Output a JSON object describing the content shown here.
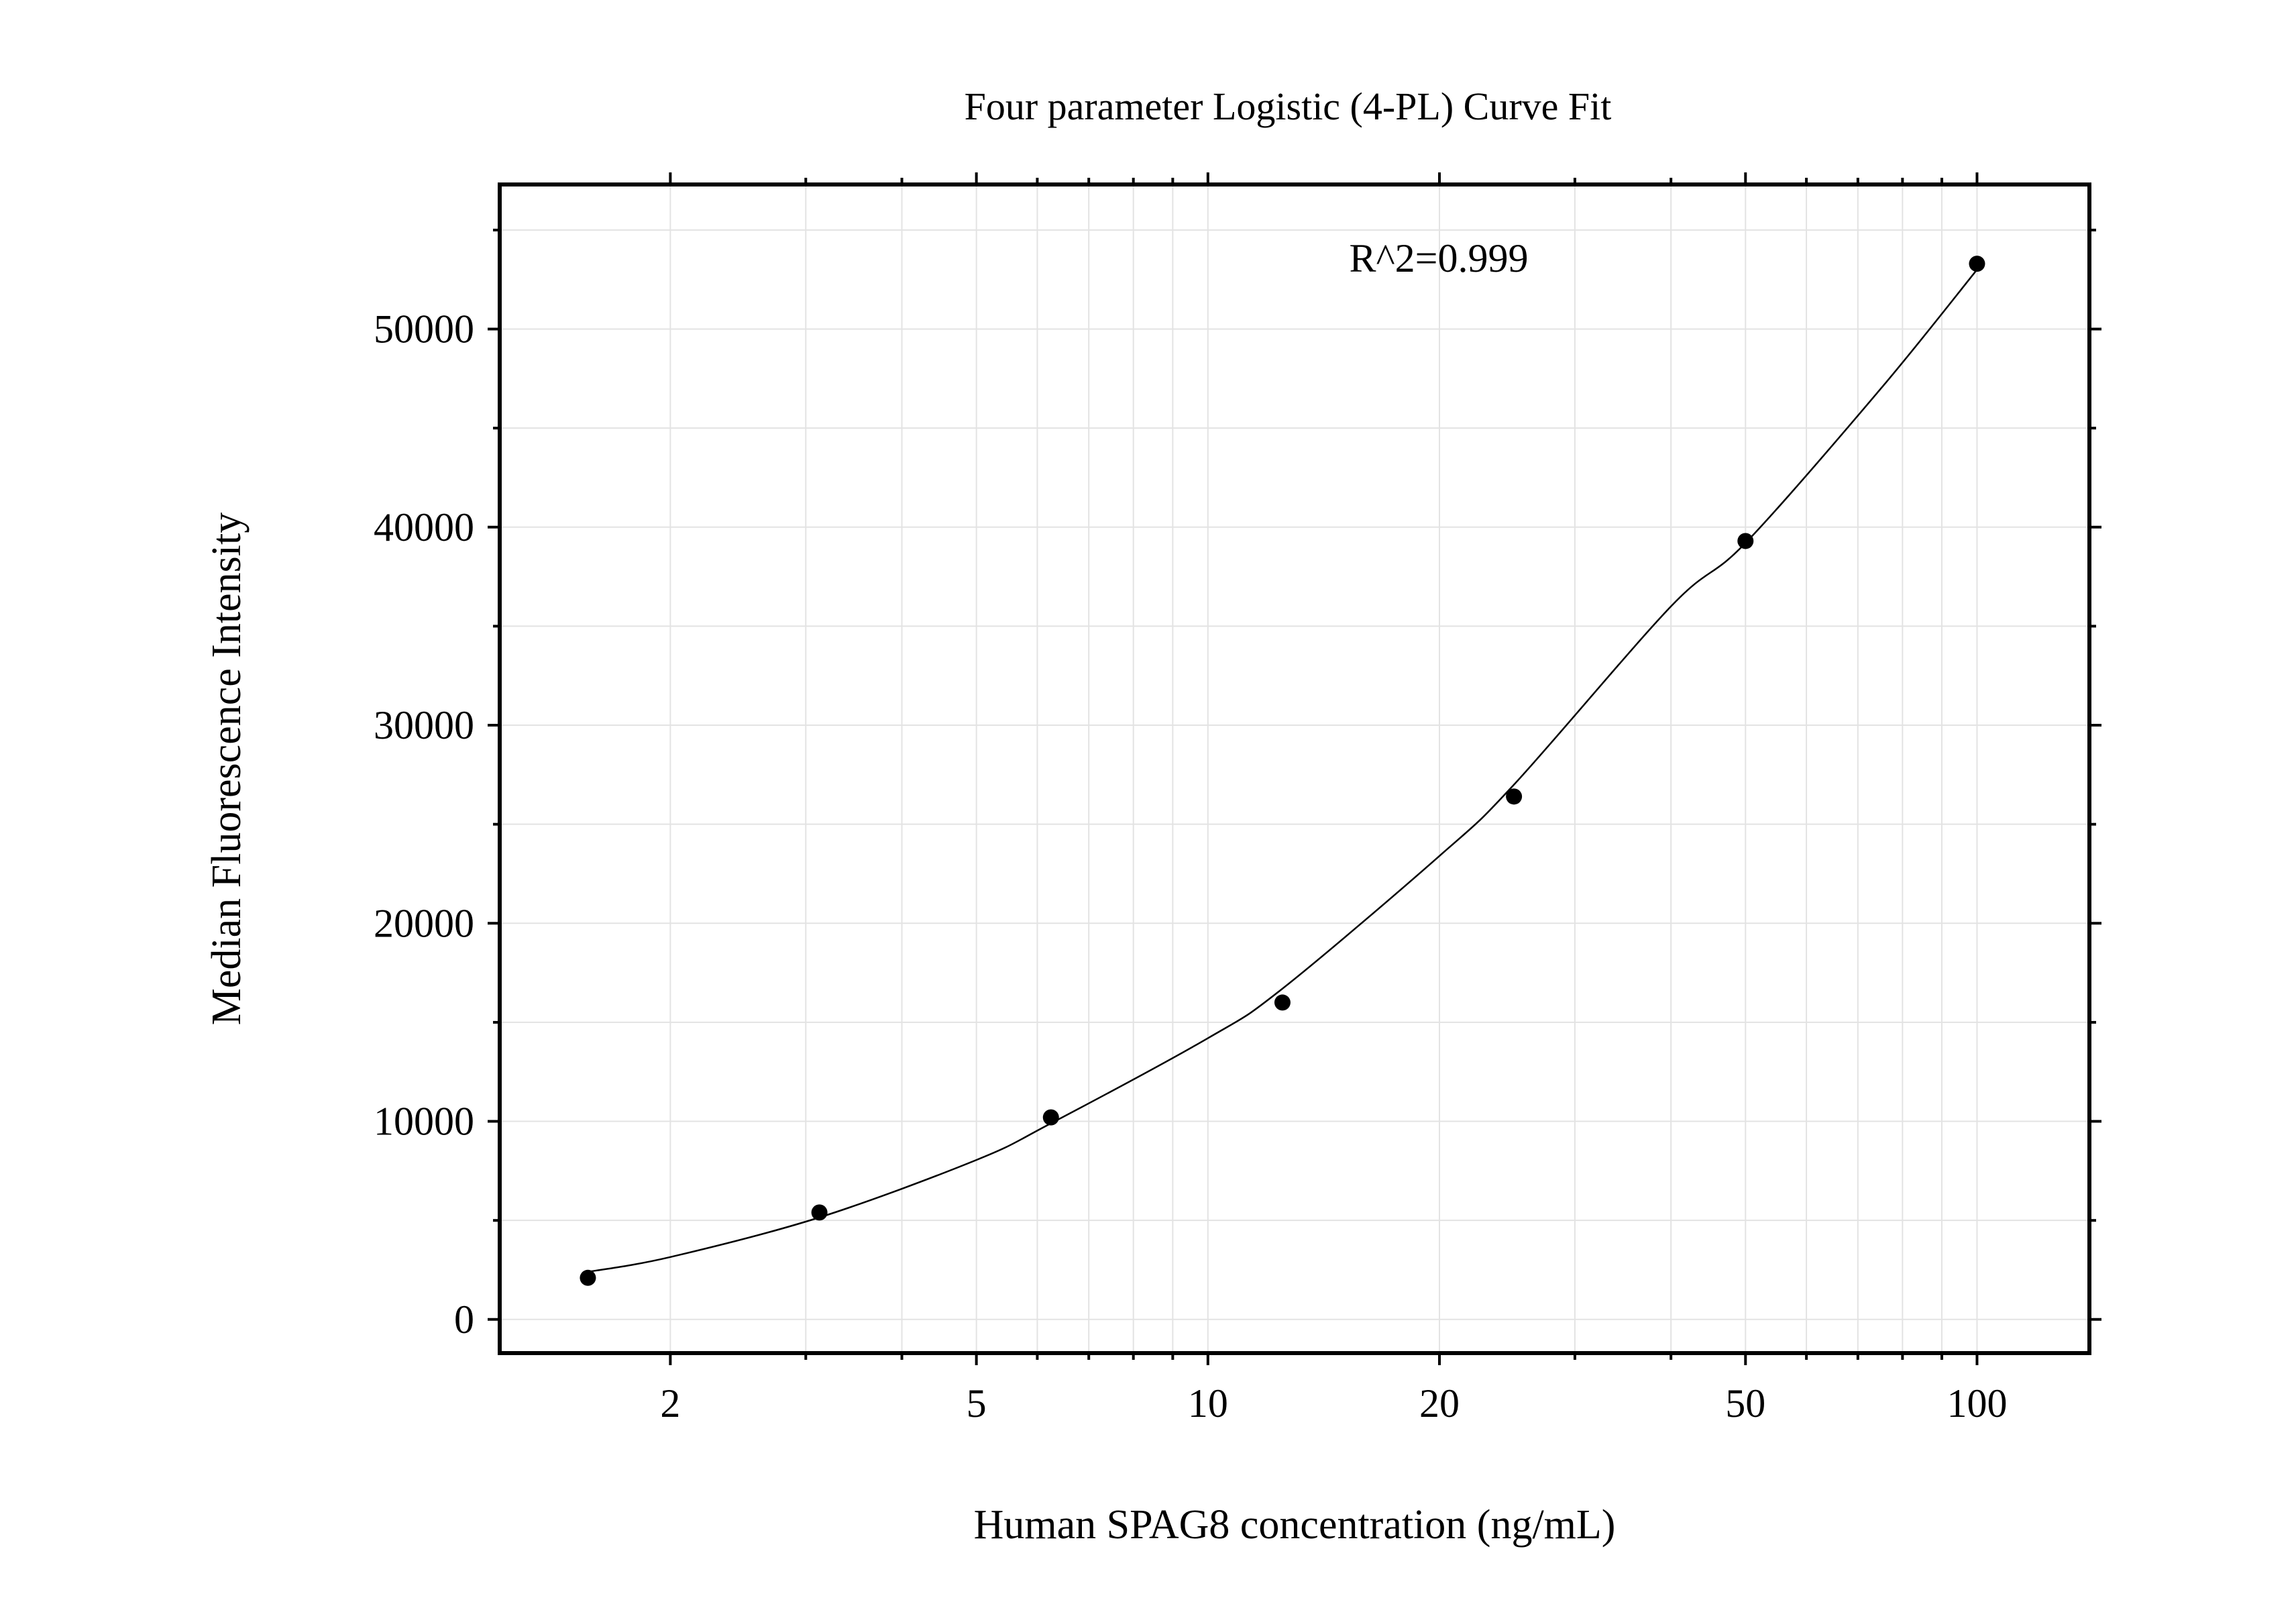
{
  "chart_data": {
    "type": "scatter",
    "title": "Four parameter Logistic (4-PL) Curve Fit",
    "xlabel": "Human SPAG8 concentration (ng/mL)",
    "ylabel": "Median Fluorescence Intensity",
    "x_scale": "log",
    "xlim": [
      1.2,
      140
    ],
    "ylim": [
      -1700,
      57300
    ],
    "x_ticks": [
      2,
      5,
      10,
      20,
      50,
      100
    ],
    "x_tick_labels": [
      "2",
      "5",
      "10",
      "20",
      "50",
      "100"
    ],
    "y_ticks": [
      0,
      10000,
      20000,
      30000,
      40000,
      50000
    ],
    "y_tick_labels": [
      "0",
      "10000",
      "20000",
      "30000",
      "40000",
      "50000"
    ],
    "grid": true,
    "annotation": "R^2=0.999",
    "series": [
      {
        "type": "scatter",
        "x": [
          1.5625,
          3.125,
          6.25,
          12.5,
          25,
          50,
          100
        ],
        "y": [
          2100,
          5400,
          10200,
          16000,
          26400,
          39300,
          53300
        ]
      },
      {
        "type": "line",
        "x": [
          1.5625,
          2,
          3.125,
          5,
          6.25,
          10,
          12.5,
          20,
          25,
          40,
          50,
          75,
          100
        ],
        "y": [
          2400,
          3150,
          5150,
          8050,
          9900,
          14200,
          16700,
          23400,
          27000,
          36000,
          39200,
          47000,
          53000
        ]
      }
    ]
  }
}
